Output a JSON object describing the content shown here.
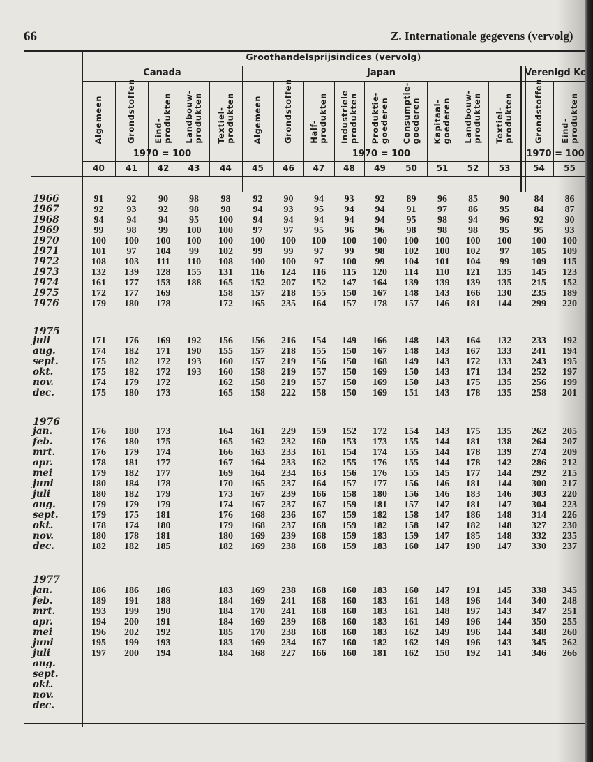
{
  "page": {
    "number": "66",
    "running_head": "Z. Internationale gegevens (vervolg)"
  },
  "table": {
    "title": "Groothandelsprijsindices (vervolg)",
    "groups": [
      {
        "country": "Canada",
        "base": "1970 = 100",
        "from": 0,
        "to": 4
      },
      {
        "country": "Japan",
        "base": "1970 = 100",
        "from": 5,
        "to": 13
      },
      {
        "country": "Verenigd Koninkrijk",
        "base": "1970 = 100",
        "from": 14,
        "to": 15
      }
    ],
    "columns": [
      {
        "no": "40",
        "header": "Algemeen"
      },
      {
        "no": "41",
        "header": "Grondstoffen"
      },
      {
        "no": "42",
        "header": "Eind-\nprodukten"
      },
      {
        "no": "43",
        "header": "Landbouw-\nprodukten"
      },
      {
        "no": "44",
        "header": "Textiel-\nprodukten"
      },
      {
        "no": "45",
        "header": "Algemeen"
      },
      {
        "no": "46",
        "header": "Grondstoffen"
      },
      {
        "no": "47",
        "header": "Half-\nprodukten"
      },
      {
        "no": "48",
        "header": "Industriele\nprodukten"
      },
      {
        "no": "49",
        "header": "Produktie-\ngoederen"
      },
      {
        "no": "50",
        "header": "Consumptie-\ngoederen"
      },
      {
        "no": "51",
        "header": "Kapitaal-\ngoederen"
      },
      {
        "no": "52",
        "header": "Landbouw-\nprodukten"
      },
      {
        "no": "53",
        "header": "Textiel-\nprodukten"
      },
      {
        "no": "54",
        "header": "Grondstoffen"
      },
      {
        "no": "55",
        "header": "Eind-\nprodukten"
      }
    ],
    "sections": [
      {
        "label": "",
        "rows": [
          {
            "label": "1966",
            "values": [
              "91",
              "92",
              "90",
              "98",
              "98",
              "92",
              "90",
              "94",
              "93",
              "92",
              "89",
              "96",
              "85",
              "90",
              "84",
              "86"
            ]
          },
          {
            "label": "1967",
            "values": [
              "92",
              "93",
              "92",
              "98",
              "98",
              "94",
              "93",
              "95",
              "94",
              "94",
              "91",
              "97",
              "86",
              "95",
              "84",
              "87"
            ]
          },
          {
            "label": "1968",
            "values": [
              "94",
              "94",
              "94",
              "95",
              "100",
              "94",
              "94",
              "94",
              "94",
              "94",
              "95",
              "98",
              "94",
              "96",
              "92",
              "90"
            ]
          },
          {
            "label": "1969",
            "values": [
              "99",
              "98",
              "99",
              "100",
              "100",
              "97",
              "97",
              "95",
              "96",
              "96",
              "98",
              "98",
              "98",
              "95",
              "95",
              "93"
            ]
          },
          {
            "label": "1970",
            "values": [
              "100",
              "100",
              "100",
              "100",
              "100",
              "100",
              "100",
              "100",
              "100",
              "100",
              "100",
              "100",
              "100",
              "100",
              "100",
              "100"
            ]
          },
          {
            "label": "1971",
            "values": [
              "101",
              "97",
              "104",
              "99",
              "102",
              "99",
              "99",
              "97",
              "99",
              "98",
              "102",
              "100",
              "102",
              "97",
              "105",
              "109"
            ]
          },
          {
            "label": "1972",
            "values": [
              "108",
              "103",
              "111",
              "110",
              "108",
              "100",
              "100",
              "97",
              "100",
              "99",
              "104",
              "101",
              "104",
              "99",
              "109",
              "115"
            ]
          },
          {
            "label": "1973",
            "values": [
              "132",
              "139",
              "128",
              "155",
              "131",
              "116",
              "124",
              "116",
              "115",
              "120",
              "114",
              "110",
              "121",
              "135",
              "145",
              "123"
            ]
          },
          {
            "label": "1974",
            "values": [
              "161",
              "177",
              "153",
              "188",
              "165",
              "152",
              "207",
              "152",
              "147",
              "164",
              "139",
              "139",
              "139",
              "135",
              "215",
              "152"
            ]
          },
          {
            "label": "1975",
            "values": [
              "172",
              "177",
              "169",
              "",
              "158",
              "157",
              "218",
              "155",
              "150",
              "167",
              "148",
              "143",
              "166",
              "130",
              "235",
              "189"
            ]
          },
          {
            "label": "1976",
            "values": [
              "179",
              "180",
              "178",
              "",
              "172",
              "165",
              "235",
              "164",
              "157",
              "178",
              "157",
              "146",
              "181",
              "144",
              "299",
              "220"
            ]
          }
        ]
      },
      {
        "label": "1975",
        "rows": [
          {
            "label": "juli",
            "values": [
              "171",
              "176",
              "169",
              "192",
              "156",
              "156",
              "216",
              "154",
              "149",
              "166",
              "148",
              "143",
              "164",
              "132",
              "233",
              "192"
            ]
          },
          {
            "label": "aug.",
            "values": [
              "174",
              "182",
              "171",
              "190",
              "155",
              "157",
              "218",
              "155",
              "150",
              "167",
              "148",
              "143",
              "167",
              "133",
              "241",
              "194"
            ]
          },
          {
            "label": "sept.",
            "values": [
              "175",
              "182",
              "172",
              "193",
              "160",
              "157",
              "219",
              "156",
              "150",
              "168",
              "149",
              "143",
              "172",
              "133",
              "243",
              "195"
            ]
          },
          {
            "label": "okt.",
            "values": [
              "175",
              "182",
              "172",
              "193",
              "160",
              "158",
              "219",
              "157",
              "150",
              "169",
              "150",
              "143",
              "171",
              "134",
              "252",
              "197"
            ]
          },
          {
            "label": "nov.",
            "values": [
              "174",
              "179",
              "172",
              "",
              "162",
              "158",
              "219",
              "157",
              "150",
              "169",
              "150",
              "143",
              "175",
              "135",
              "256",
              "199"
            ]
          },
          {
            "label": "dec.",
            "values": [
              "175",
              "180",
              "173",
              "",
              "165",
              "158",
              "222",
              "158",
              "150",
              "169",
              "151",
              "143",
              "178",
              "135",
              "258",
              "201"
            ]
          }
        ]
      },
      {
        "label": "1976",
        "rows": [
          {
            "label": "jan.",
            "values": [
              "176",
              "180",
              "173",
              "",
              "164",
              "161",
              "229",
              "159",
              "152",
              "172",
              "154",
              "143",
              "175",
              "135",
              "262",
              "205"
            ]
          },
          {
            "label": "feb.",
            "values": [
              "176",
              "180",
              "175",
              "",
              "165",
              "162",
              "232",
              "160",
              "153",
              "173",
              "155",
              "144",
              "181",
              "138",
              "264",
              "207"
            ]
          },
          {
            "label": "mrt.",
            "values": [
              "176",
              "179",
              "174",
              "",
              "166",
              "163",
              "233",
              "161",
              "154",
              "174",
              "155",
              "144",
              "178",
              "139",
              "274",
              "209"
            ]
          },
          {
            "label": "apr.",
            "values": [
              "178",
              "181",
              "177",
              "",
              "167",
              "164",
              "233",
              "162",
              "155",
              "176",
              "155",
              "144",
              "178",
              "142",
              "286",
              "212"
            ]
          },
          {
            "label": "mei",
            "values": [
              "179",
              "182",
              "177",
              "",
              "169",
              "164",
              "234",
              "163",
              "156",
              "176",
              "155",
              "145",
              "177",
              "144",
              "292",
              "215"
            ]
          },
          {
            "label": "juni",
            "values": [
              "180",
              "184",
              "178",
              "",
              "170",
              "165",
              "237",
              "164",
              "157",
              "177",
              "156",
              "146",
              "181",
              "144",
              "300",
              "217"
            ]
          },
          {
            "label": "juli",
            "values": [
              "180",
              "182",
              "179",
              "",
              "173",
              "167",
              "239",
              "166",
              "158",
              "180",
              "156",
              "146",
              "183",
              "146",
              "303",
              "220"
            ]
          },
          {
            "label": "aug.",
            "values": [
              "179",
              "179",
              "179",
              "",
              "174",
              "167",
              "237",
              "167",
              "159",
              "181",
              "157",
              "147",
              "181",
              "147",
              "304",
              "223"
            ]
          },
          {
            "label": "sept.",
            "values": [
              "179",
              "175",
              "181",
              "",
              "176",
              "168",
              "236",
              "167",
              "159",
              "182",
              "158",
              "147",
              "186",
              "148",
              "314",
              "226"
            ]
          },
          {
            "label": "okt.",
            "values": [
              "178",
              "174",
              "180",
              "",
              "179",
              "168",
              "237",
              "168",
              "159",
              "182",
              "158",
              "147",
              "182",
              "148",
              "327",
              "230"
            ]
          },
          {
            "label": "nov.",
            "values": [
              "180",
              "178",
              "181",
              "",
              "180",
              "169",
              "239",
              "168",
              "159",
              "183",
              "159",
              "147",
              "185",
              "148",
              "332",
              "235"
            ]
          },
          {
            "label": "dec.",
            "values": [
              "182",
              "182",
              "185",
              "",
              "182",
              "169",
              "238",
              "168",
              "159",
              "183",
              "160",
              "147",
              "190",
              "147",
              "330",
              "237"
            ]
          }
        ]
      },
      {
        "label": "1977",
        "rows": [
          {
            "label": "jan.",
            "values": [
              "186",
              "186",
              "186",
              "",
              "183",
              "169",
              "238",
              "168",
              "160",
              "183",
              "160",
              "147",
              "191",
              "145",
              "338",
              "345"
            ]
          },
          {
            "label": "feb.",
            "values": [
              "189",
              "191",
              "188",
              "",
              "184",
              "169",
              "241",
              "168",
              "160",
              "183",
              "161",
              "148",
              "196",
              "144",
              "340",
              "248"
            ]
          },
          {
            "label": "mrt.",
            "values": [
              "193",
              "199",
              "190",
              "",
              "184",
              "170",
              "241",
              "168",
              "160",
              "183",
              "161",
              "148",
              "197",
              "143",
              "347",
              "251"
            ]
          },
          {
            "label": "apr.",
            "values": [
              "194",
              "200",
              "191",
              "",
              "184",
              "169",
              "239",
              "168",
              "160",
              "183",
              "161",
              "149",
              "196",
              "144",
              "350",
              "255"
            ]
          },
          {
            "label": "mei",
            "values": [
              "196",
              "202",
              "192",
              "",
              "185",
              "170",
              "238",
              "168",
              "160",
              "183",
              "162",
              "149",
              "196",
              "144",
              "348",
              "260"
            ]
          },
          {
            "label": "juni",
            "values": [
              "195",
              "199",
              "193",
              "",
              "183",
              "169",
              "234",
              "167",
              "160",
              "182",
              "162",
              "149",
              "196",
              "143",
              "345",
              "262"
            ]
          },
          {
            "label": "juli",
            "values": [
              "197",
              "200",
              "194",
              "",
              "184",
              "168",
              "227",
              "166",
              "160",
              "181",
              "162",
              "150",
              "192",
              "141",
              "346",
              "266"
            ]
          },
          {
            "label": "aug.",
            "values": [
              "",
              "",
              "",
              "",
              "",
              "",
              "",
              "",
              "",
              "",
              "",
              "",
              "",
              "",
              "",
              ""
            ]
          },
          {
            "label": "sept.",
            "values": [
              "",
              "",
              "",
              "",
              "",
              "",
              "",
              "",
              "",
              "",
              "",
              "",
              "",
              "",
              "",
              ""
            ]
          },
          {
            "label": "okt.",
            "values": [
              "",
              "",
              "",
              "",
              "",
              "",
              "",
              "",
              "",
              "",
              "",
              "",
              "",
              "",
              "",
              ""
            ]
          },
          {
            "label": "nov.",
            "values": [
              "",
              "",
              "",
              "",
              "",
              "",
              "",
              "",
              "",
              "",
              "",
              "",
              "",
              "",
              "",
              ""
            ]
          },
          {
            "label": "dec.",
            "values": [
              "",
              "",
              "",
              "",
              "",
              "",
              "",
              "",
              "",
              "",
              "",
              "",
              "",
              "",
              "",
              ""
            ]
          }
        ]
      }
    ]
  }
}
